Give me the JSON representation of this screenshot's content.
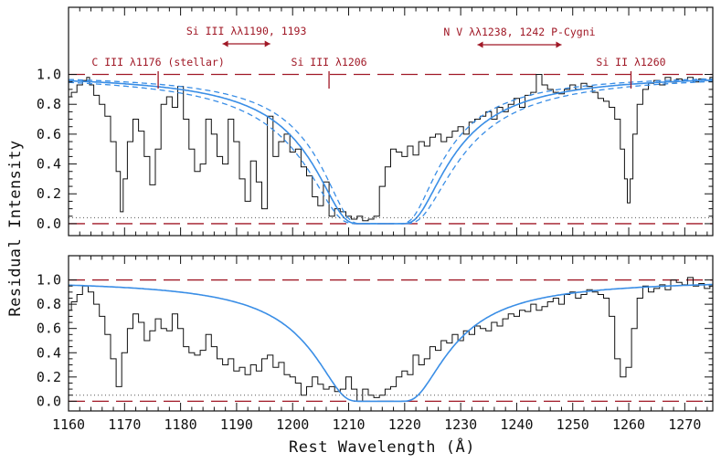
{
  "chart_data": {
    "type": "line",
    "xlabel": "Rest Wavelength (Å)",
    "ylabel": "Residual Intensity",
    "xlim": [
      1160,
      1275
    ],
    "x_ticks": [
      "1160",
      "1170",
      "1180",
      "1190",
      "1200",
      "1210",
      "1220",
      "1230",
      "1240",
      "1250",
      "1260",
      "1270"
    ],
    "panels": [
      {
        "id": "top",
        "ylim": [
          -0.08,
          1.45
        ],
        "y_ticks": [
          "0.0",
          "0.2",
          "0.4",
          "0.6",
          "0.8",
          "1.0"
        ],
        "reference_lines": [
          0.0,
          1.0
        ],
        "annotations": [
          {
            "label": "C III λ1176 (stellar)",
            "x": 1176
          },
          {
            "label": "Si III λλ1190, 1193",
            "x_range": [
              1187.5,
              1196
            ]
          },
          {
            "label": "Si III λ1206",
            "x": 1206.5
          },
          {
            "label": "N V λλ1238, 1242 P-Cygni",
            "x_range": [
              1233,
              1248
            ]
          },
          {
            "label": "Si II λ1260",
            "x": 1260.4
          }
        ],
        "series": [
          {
            "role": "spectrum",
            "x": [
              1160,
              1161,
              1162,
              1163,
              1163.5,
              1164,
              1165,
              1166,
              1167,
              1168,
              1169,
              1169.5,
              1170,
              1171,
              1172,
              1173,
              1174,
              1175,
              1176,
              1177,
              1178,
              1179,
              1180,
              1181,
              1182,
              1183,
              1184,
              1185,
              1186,
              1187,
              1188,
              1189,
              1190,
              1191,
              1192,
              1193,
              1194,
              1195,
              1196,
              1197,
              1198,
              1199,
              1200,
              1201,
              1202,
              1203,
              1204,
              1205,
              1206,
              1207,
              1208,
              1209,
              1210,
              1211,
              1212,
              1213,
              1214,
              1215,
              1216,
              1217,
              1218,
              1219,
              1220,
              1221,
              1222,
              1223,
              1224,
              1225,
              1226,
              1227,
              1228,
              1229,
              1230,
              1231,
              1232,
              1233,
              1234,
              1235,
              1236,
              1237,
              1238,
              1239,
              1240,
              1241,
              1242,
              1243,
              1244,
              1245,
              1246,
              1247,
              1248,
              1249,
              1250,
              1251,
              1252,
              1253,
              1254,
              1255,
              1256,
              1257,
              1258,
              1259,
              1259.5,
              1260,
              1260.5,
              1261,
              1262,
              1263,
              1264,
              1265,
              1266,
              1267,
              1268,
              1269,
              1270,
              1271,
              1272,
              1273,
              1274,
              1275
            ],
            "y": [
              0.85,
              0.88,
              0.93,
              0.96,
              0.98,
              0.93,
              0.86,
              0.8,
              0.72,
              0.55,
              0.35,
              0.08,
              0.3,
              0.55,
              0.7,
              0.62,
              0.45,
              0.26,
              0.5,
              0.8,
              0.85,
              0.78,
              0.92,
              0.7,
              0.5,
              0.35,
              0.4,
              0.7,
              0.6,
              0.45,
              0.4,
              0.7,
              0.55,
              0.3,
              0.15,
              0.42,
              0.28,
              0.1,
              0.72,
              0.45,
              0.55,
              0.6,
              0.48,
              0.5,
              0.38,
              0.32,
              0.18,
              0.12,
              0.28,
              0.05,
              0.1,
              0.08,
              0.05,
              0.03,
              0.05,
              0.02,
              0.03,
              0.05,
              0.25,
              0.38,
              0.5,
              0.48,
              0.45,
              0.52,
              0.46,
              0.55,
              0.52,
              0.58,
              0.6,
              0.55,
              0.58,
              0.62,
              0.65,
              0.6,
              0.68,
              0.7,
              0.72,
              0.75,
              0.7,
              0.78,
              0.75,
              0.8,
              0.84,
              0.78,
              0.86,
              0.88,
              1.0,
              0.93,
              0.9,
              0.88,
              0.87,
              0.9,
              0.93,
              0.9,
              0.94,
              0.92,
              0.88,
              0.84,
              0.82,
              0.78,
              0.7,
              0.5,
              0.3,
              0.14,
              0.3,
              0.6,
              0.8,
              0.9,
              0.94,
              0.96,
              0.93,
              0.98,
              0.95,
              0.97,
              0.96,
              0.98,
              0.95,
              0.97,
              0.96,
              0.98
            ]
          },
          {
            "role": "model",
            "center": 1215.67,
            "logN": 21.5
          },
          {
            "role": "model-upper",
            "center": 1215.67,
            "logN": 21.6
          },
          {
            "role": "model-lower",
            "center": 1215.67,
            "logN": 21.4
          },
          {
            "role": "error",
            "value": 0.04
          }
        ]
      },
      {
        "id": "bottom",
        "ylim": [
          -0.08,
          1.2
        ],
        "y_ticks": [
          "0.0",
          "0.2",
          "0.4",
          "0.6",
          "0.8",
          "1.0"
        ],
        "reference_lines": [
          0.0,
          1.0
        ],
        "series": [
          {
            "role": "spectrum",
            "x": [
              1160,
              1161,
              1162,
              1163,
              1164,
              1165,
              1166,
              1167,
              1168,
              1169,
              1170,
              1171,
              1172,
              1173,
              1174,
              1175,
              1176,
              1177,
              1178,
              1179,
              1180,
              1181,
              1182,
              1183,
              1184,
              1185,
              1186,
              1187,
              1188,
              1189,
              1190,
              1191,
              1192,
              1193,
              1194,
              1195,
              1196,
              1197,
              1198,
              1199,
              1200,
              1201,
              1202,
              1203,
              1204,
              1205,
              1206,
              1207,
              1208,
              1209,
              1210,
              1211,
              1212,
              1213,
              1214,
              1215,
              1216,
              1217,
              1218,
              1219,
              1220,
              1221,
              1222,
              1223,
              1224,
              1225,
              1226,
              1227,
              1228,
              1229,
              1230,
              1231,
              1232,
              1233,
              1234,
              1235,
              1236,
              1237,
              1238,
              1239,
              1240,
              1241,
              1242,
              1243,
              1244,
              1245,
              1246,
              1247,
              1248,
              1249,
              1250,
              1251,
              1252,
              1253,
              1254,
              1255,
              1256,
              1257,
              1258,
              1259,
              1260,
              1261,
              1262,
              1263,
              1264,
              1265,
              1266,
              1267,
              1268,
              1269,
              1270,
              1271,
              1272,
              1273,
              1274,
              1275
            ],
            "y": [
              0.75,
              0.82,
              0.88,
              0.95,
              0.9,
              0.8,
              0.7,
              0.55,
              0.35,
              0.12,
              0.4,
              0.6,
              0.72,
              0.65,
              0.5,
              0.58,
              0.68,
              0.6,
              0.58,
              0.72,
              0.6,
              0.45,
              0.4,
              0.38,
              0.42,
              0.55,
              0.45,
              0.35,
              0.3,
              0.35,
              0.25,
              0.28,
              0.22,
              0.3,
              0.25,
              0.35,
              0.38,
              0.28,
              0.32,
              0.22,
              0.2,
              0.15,
              0.05,
              0.12,
              0.2,
              0.14,
              0.1,
              0.12,
              0.08,
              0.1,
              0.2,
              0.1,
              0.0,
              0.1,
              0.05,
              0.03,
              0.05,
              0.1,
              0.12,
              0.2,
              0.25,
              0.22,
              0.38,
              0.3,
              0.35,
              0.45,
              0.42,
              0.5,
              0.48,
              0.55,
              0.5,
              0.58,
              0.55,
              0.62,
              0.6,
              0.58,
              0.65,
              0.62,
              0.68,
              0.72,
              0.7,
              0.75,
              0.74,
              0.8,
              0.75,
              0.78,
              0.82,
              0.85,
              0.8,
              0.88,
              0.9,
              0.85,
              0.88,
              0.92,
              0.9,
              0.88,
              0.85,
              0.7,
              0.35,
              0.2,
              0.28,
              0.6,
              0.85,
              0.95,
              0.9,
              0.93,
              0.96,
              0.92,
              1.0,
              0.98,
              0.96,
              1.02,
              0.95,
              0.97,
              0.93,
              0.95
            ]
          },
          {
            "role": "model",
            "center": 1215.67,
            "logN": 21.5
          },
          {
            "role": "error",
            "value": 0.05
          }
        ]
      }
    ]
  },
  "colors": {
    "spectrum": "#111111",
    "model": "#3a8ee6",
    "reference": "#a01826",
    "annotation": "#a01826",
    "error": "#555555"
  }
}
